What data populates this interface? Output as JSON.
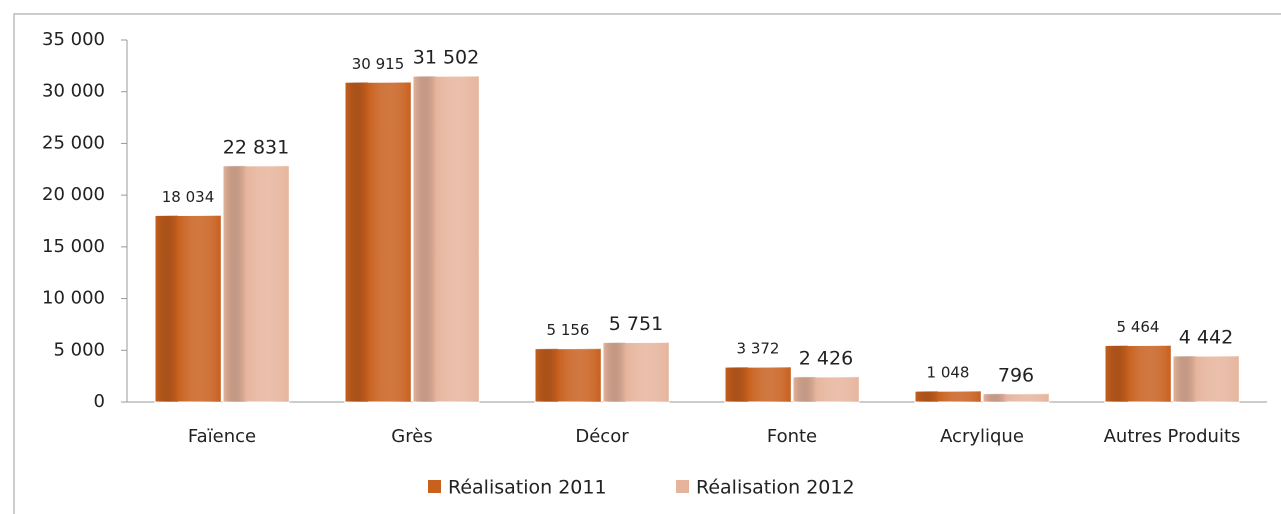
{
  "chart_data": {
    "type": "bar",
    "categories": [
      "Faïence",
      "Grès",
      "Décor",
      "Fonte",
      "Acrylique",
      "Autres Produits"
    ],
    "series": [
      {
        "name": "Réalisation 2011",
        "color": "#c8601e",
        "values": [
          18034,
          30915,
          5156,
          3372,
          1048,
          5464
        ],
        "value_labels": [
          "18 034",
          "30 915",
          "5 156",
          "3 372",
          "1 048",
          "5 464"
        ]
      },
      {
        "name": "Réalisation 2012",
        "color": "#e6b49c",
        "values": [
          22831,
          31502,
          5751,
          2426,
          796,
          4442
        ],
        "value_labels": [
          "22 831",
          "31 502",
          "5 751",
          "2 426",
          "796",
          "4 442"
        ]
      }
    ],
    "ylim": [
      0,
      35000
    ],
    "yticks": [
      0,
      {
        "value": 5000,
        "label": "5 000"
      },
      {
        "value": 10000,
        "label": "10 000"
      },
      {
        "value": 15000,
        "label": "15 000"
      },
      {
        "value": 20000,
        "label": "20 000"
      },
      {
        "value": 25000,
        "label": "25 000"
      },
      {
        "value": 30000,
        "label": "30 000"
      },
      {
        "value": 35000,
        "label": "35 000"
      }
    ],
    "legend": "bottom"
  }
}
